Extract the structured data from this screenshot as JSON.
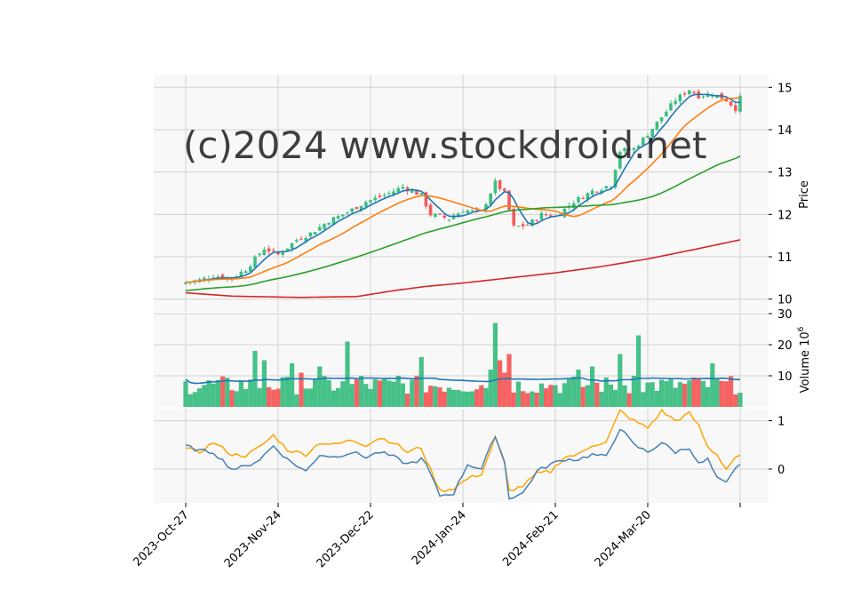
{
  "watermark": "(c)2024 www.stockdroid.net",
  "colors": {
    "panel_bg": "#f8f8f8",
    "grid": "#d2d2d2",
    "up": "#3cbe82",
    "down": "#f55a5a",
    "ma_blue": "#1f77b4",
    "ma_orange": "#ff7f0e",
    "ma_green": "#2ca02c",
    "ma_red": "#d62728",
    "vol_ma": "#1f77b4",
    "osc_blue": "#4682b4",
    "osc_orange": "#ffa500",
    "watermark": "#d9d9d9"
  },
  "chart_data": [
    {
      "type": "candlestick",
      "panel": "price",
      "ylabel": "Price",
      "ylim": [
        9.7,
        15.3
      ],
      "yticks": [
        10,
        11,
        12,
        13,
        14,
        15
      ],
      "xlim": [
        -5,
        124
      ],
      "x_ticks": [
        {
          "index": 0,
          "label": "2023-Oct-27"
        },
        {
          "index": 20,
          "label": "2023-Nov-24"
        },
        {
          "index": 40,
          "label": "2023-Dec-22"
        },
        {
          "index": 60,
          "label": "2024-Jan-24"
        },
        {
          "index": 80,
          "label": "2024-Feb-21"
        },
        {
          "index": 100,
          "label": "2024-Mar-20"
        },
        {
          "index": 120,
          "label": ""
        }
      ],
      "close_anchors": [
        [
          0,
          10.4
        ],
        [
          3,
          10.45
        ],
        [
          6,
          10.55
        ],
        [
          10,
          10.5
        ],
        [
          13,
          10.7
        ],
        [
          17,
          11.2
        ],
        [
          20,
          11.05
        ],
        [
          24,
          11.4
        ],
        [
          27,
          11.55
        ],
        [
          31,
          11.85
        ],
        [
          35,
          12.05
        ],
        [
          39,
          12.3
        ],
        [
          43,
          12.45
        ],
        [
          47,
          12.65
        ],
        [
          51,
          12.45
        ],
        [
          53,
          12.0
        ],
        [
          57,
          11.9
        ],
        [
          60,
          12.1
        ],
        [
          64,
          12.05
        ],
        [
          67,
          12.75
        ],
        [
          69,
          12.5
        ],
        [
          71,
          11.7
        ],
        [
          74,
          11.75
        ],
        [
          77,
          12.0
        ],
        [
          80,
          11.95
        ],
        [
          84,
          12.3
        ],
        [
          88,
          12.55
        ],
        [
          92,
          12.7
        ],
        [
          94,
          13.5
        ],
        [
          97,
          13.55
        ],
        [
          100,
          13.9
        ],
        [
          103,
          14.3
        ],
        [
          106,
          14.7
        ],
        [
          109,
          14.95
        ],
        [
          111,
          14.8
        ],
        [
          114,
          14.85
        ],
        [
          117,
          14.7
        ],
        [
          119,
          14.5
        ],
        [
          120,
          14.75
        ]
      ],
      "moving_averages": [
        {
          "window": 5,
          "color": "#1f77b4"
        },
        {
          "window": 15,
          "color": "#ff7f0e"
        },
        {
          "window": 50,
          "color": "#2ca02c"
        },
        {
          "window": 200,
          "color": "#d62728",
          "anchors": [
            [
              0,
              10.15
            ],
            [
              10,
              10.07
            ],
            [
              20,
              10.05
            ],
            [
              25,
              10.04
            ],
            [
              30,
              10.05
            ],
            [
              37,
              10.06
            ],
            [
              45,
              10.2
            ],
            [
              52,
              10.3
            ],
            [
              60,
              10.38
            ],
            [
              70,
              10.5
            ],
            [
              80,
              10.62
            ],
            [
              90,
              10.77
            ],
            [
              100,
              10.95
            ],
            [
              110,
              11.17
            ],
            [
              120,
              11.4
            ]
          ]
        }
      ]
    },
    {
      "type": "bar",
      "panel": "volume",
      "ylabel": "Volume  $10^6$",
      "ylim": [
        0,
        30
      ],
      "yticks": [
        10,
        20,
        30
      ],
      "spikes": [
        [
          15,
          18
        ],
        [
          17,
          15
        ],
        [
          23,
          14
        ],
        [
          25,
          11
        ],
        [
          29,
          13
        ],
        [
          35,
          21
        ],
        [
          38,
          10
        ],
        [
          46,
          10
        ],
        [
          51,
          16
        ],
        [
          66,
          12
        ],
        [
          67,
          27
        ],
        [
          68,
          15
        ],
        [
          69,
          11
        ],
        [
          70,
          17
        ],
        [
          80,
          7
        ],
        [
          85,
          12
        ],
        [
          88,
          13
        ],
        [
          94,
          17
        ],
        [
          97,
          10
        ],
        [
          98,
          23
        ],
        [
          111,
          9
        ],
        [
          114,
          14
        ]
      ],
      "ma": {
        "window": 20,
        "approx_level": 9.5
      }
    },
    {
      "type": "line",
      "panel": "oscillator",
      "yticks": [
        0,
        1
      ],
      "ylim": [
        -0.7,
        1.25
      ],
      "series": [
        {
          "color": "#ffa500",
          "anchors": [
            [
              0,
              0.42
            ],
            [
              3,
              0.35
            ],
            [
              6,
              0.55
            ],
            [
              10,
              0.3
            ],
            [
              13,
              0.28
            ],
            [
              16,
              0.45
            ],
            [
              19,
              0.7
            ],
            [
              22,
              0.4
            ],
            [
              26,
              0.3
            ],
            [
              29,
              0.55
            ],
            [
              32,
              0.5
            ],
            [
              36,
              0.6
            ],
            [
              39,
              0.5
            ],
            [
              42,
              0.65
            ],
            [
              45,
              0.55
            ],
            [
              48,
              0.35
            ],
            [
              51,
              0.45
            ],
            [
              52,
              0.2
            ],
            [
              55,
              -0.45
            ],
            [
              58,
              -0.4
            ],
            [
              61,
              -0.2
            ],
            [
              64,
              -0.1
            ],
            [
              67,
              0.65
            ],
            [
              69,
              0.1
            ],
            [
              70,
              -0.45
            ],
            [
              73,
              -0.35
            ],
            [
              76,
              -0.1
            ],
            [
              79,
              -0.05
            ],
            [
              82,
              0.25
            ],
            [
              85,
              0.3
            ],
            [
              88,
              0.5
            ],
            [
              91,
              0.55
            ],
            [
              94,
              1.2
            ],
            [
              97,
              1.0
            ],
            [
              100,
              0.85
            ],
            [
              103,
              1.2
            ],
            [
              106,
              1.0
            ],
            [
              109,
              1.15
            ],
            [
              111,
              0.9
            ],
            [
              113,
              0.45
            ],
            [
              115,
              0.3
            ],
            [
              117,
              0.0
            ],
            [
              119,
              0.25
            ],
            [
              120,
              0.25
            ]
          ]
        },
        {
          "color": "#4682b4",
          "anchors": [
            [
              0,
              0.48
            ],
            [
              3,
              0.38
            ],
            [
              6,
              0.35
            ],
            [
              10,
              0.0
            ],
            [
              13,
              0.05
            ],
            [
              16,
              0.2
            ],
            [
              19,
              0.48
            ],
            [
              22,
              0.2
            ],
            [
              26,
              -0.05
            ],
            [
              29,
              0.3
            ],
            [
              32,
              0.25
            ],
            [
              36,
              0.35
            ],
            [
              39,
              0.25
            ],
            [
              42,
              0.35
            ],
            [
              45,
              0.25
            ],
            [
              48,
              0.1
            ],
            [
              51,
              0.2
            ],
            [
              52,
              0.1
            ],
            [
              55,
              -0.55
            ],
            [
              58,
              -0.5
            ],
            [
              61,
              0.1
            ],
            [
              64,
              0.0
            ],
            [
              67,
              0.7
            ],
            [
              69,
              0.15
            ],
            [
              70,
              -0.6
            ],
            [
              73,
              -0.5
            ],
            [
              76,
              -0.05
            ],
            [
              79,
              0.1
            ],
            [
              82,
              0.2
            ],
            [
              85,
              0.2
            ],
            [
              88,
              0.3
            ],
            [
              91,
              0.25
            ],
            [
              94,
              0.85
            ],
            [
              97,
              0.5
            ],
            [
              100,
              0.35
            ],
            [
              103,
              0.55
            ],
            [
              106,
              0.35
            ],
            [
              109,
              0.45
            ],
            [
              111,
              0.1
            ],
            [
              113,
              0.2
            ],
            [
              115,
              -0.2
            ],
            [
              117,
              -0.3
            ],
            [
              119,
              0.0
            ],
            [
              120,
              0.12
            ]
          ]
        }
      ]
    }
  ]
}
